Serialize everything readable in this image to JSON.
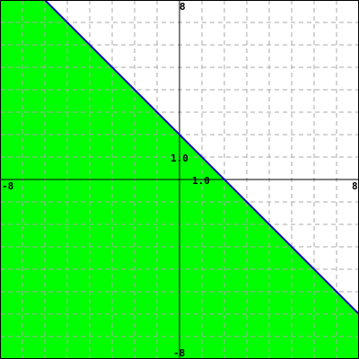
{
  "chart_data": {
    "type": "area",
    "xlim": [
      -8,
      8
    ],
    "ylim": [
      -8,
      8
    ],
    "grid": true,
    "grid_step": 1,
    "boundary_line": {
      "slope": -1,
      "intercept": 2,
      "style": "solid"
    },
    "shaded_region": "below",
    "tick_labels": {
      "x_min": "-8",
      "x_max": "8",
      "y_max": "8",
      "y_min": "-8",
      "x_unit": "1.0",
      "y_unit": "1.0"
    }
  },
  "colors": {
    "fill": "#00ff00",
    "line": "#0000cc",
    "grid": "#aaaaaa",
    "axes": "#000000",
    "background": "#ffffff"
  }
}
